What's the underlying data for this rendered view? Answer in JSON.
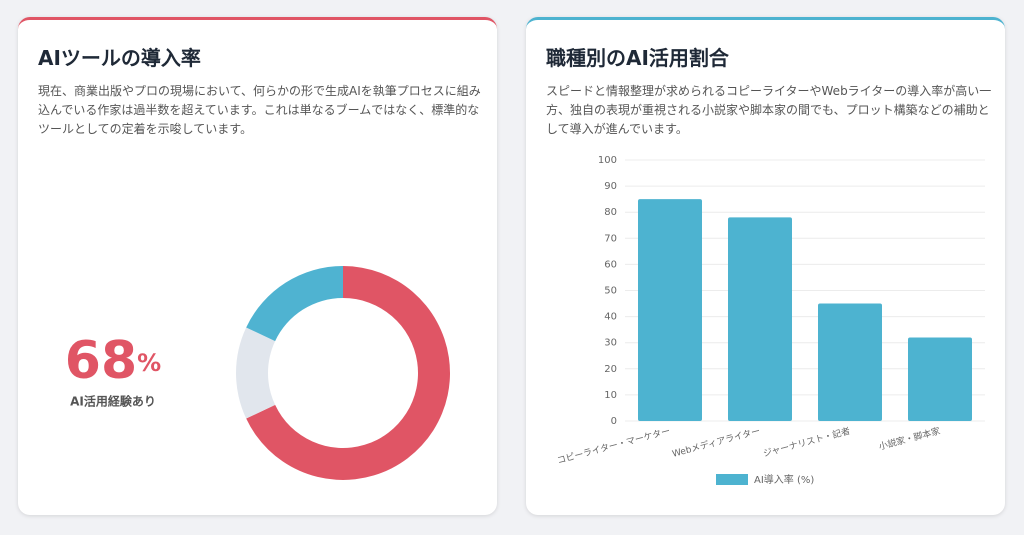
{
  "chart_data": [
    {
      "type": "donut",
      "title": "AIツールの導入率",
      "description": "現在、商業出版やプロの現場において、何らかの形で生成AIを執筆プロセスに組み込んでいる作家は過半数を超えています。これは単なるブームではなく、標準的なツールとしての定着を示唆しています。",
      "center_value": "68",
      "center_unit": "%",
      "center_label": "AI活用経験あり",
      "values": [
        68,
        14,
        18
      ],
      "colors": [
        "#e05565",
        "#e1e6ed",
        "#4fb3d1"
      ]
    },
    {
      "type": "bar",
      "title": "職種別のAI活用割合",
      "description": "スピードと情報整理が求められるコピーライターやWebライターの導入率が高い一方、独自の表現が重視される小説家や脚本家の間でも、プロット構築などの補助として導入が進んでいます。",
      "categories": [
        "コピーライター・マーケター",
        "Webメディアライター",
        "ジャーナリスト・記者",
        "小説家・脚本家"
      ],
      "series": [
        {
          "name": "AI導入率 (%)",
          "color": "#4db3d0",
          "values": [
            85,
            78,
            45,
            32
          ]
        }
      ],
      "ylim": [
        0,
        100
      ],
      "yticks": [
        0,
        10,
        20,
        30,
        40,
        50,
        60,
        70,
        80,
        90,
        100
      ],
      "grid": true
    }
  ]
}
